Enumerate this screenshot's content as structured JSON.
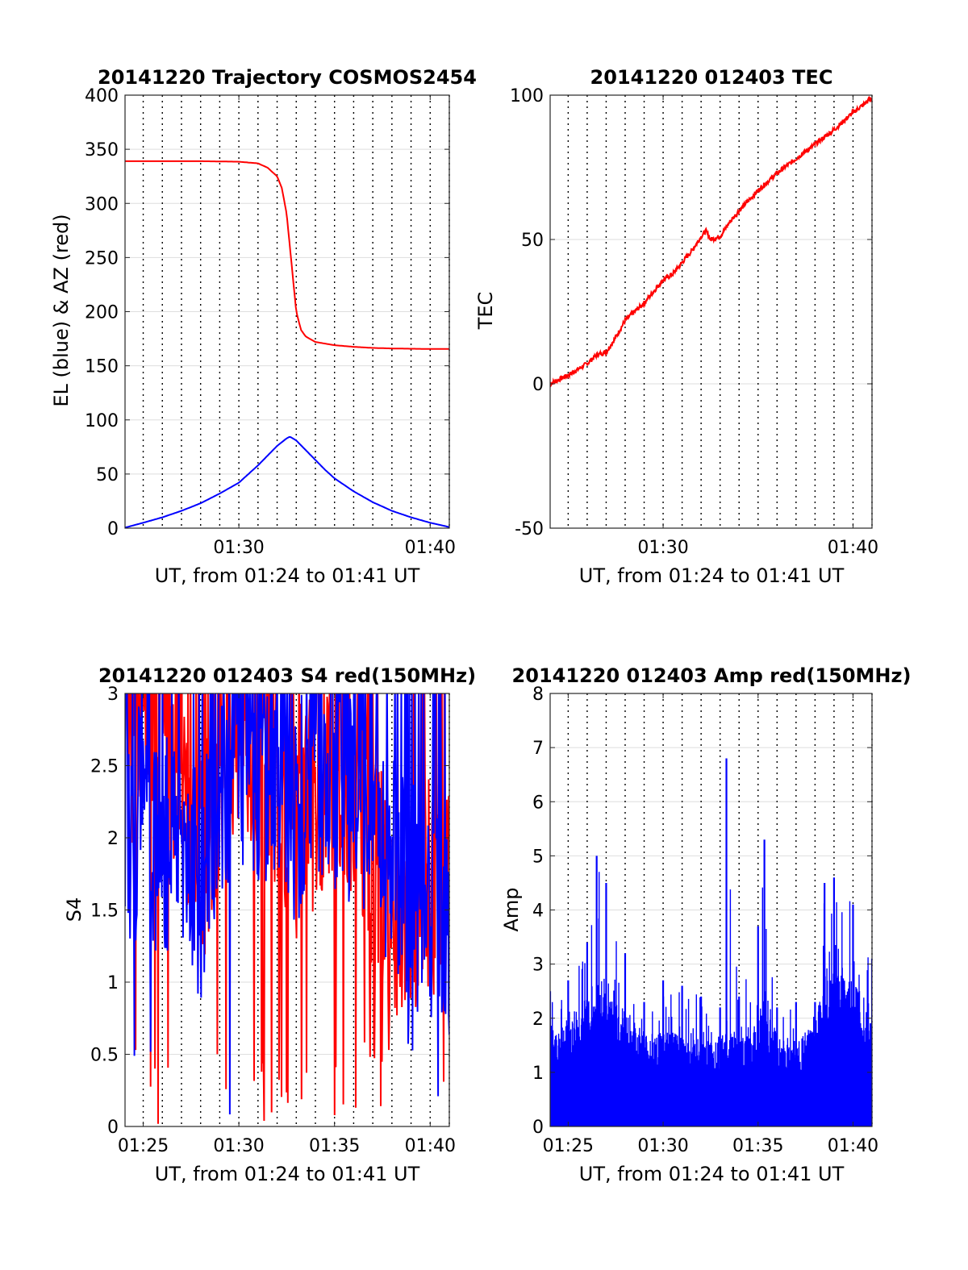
{
  "chart_data": [
    {
      "type": "line",
      "title": "20141220 Trajectory COSMOS2454",
      "xlabel": "UT, from 01:24 to 01:41 UT",
      "ylabel": "EL (blue) & AZ (red)",
      "xlim": [
        "01:24:03",
        "01:41:00"
      ],
      "ylim": [
        0,
        400
      ],
      "yticks": [
        0,
        50,
        100,
        150,
        200,
        250,
        300,
        350,
        400
      ],
      "xticks": [
        "01:30",
        "01:40"
      ],
      "grid": "dotted vertical lines every minute, horizontal gridlines",
      "series": [
        {
          "color": "#ff0000",
          "x": [
            "01:24:03",
            "01:26:00",
            "01:28:00",
            "01:30:00",
            "01:31:00",
            "01:31:30",
            "01:32:00",
            "01:32:15",
            "01:32:30",
            "01:32:45",
            "01:33:00",
            "01:33:15",
            "01:33:30",
            "01:34:00",
            "01:35:00",
            "01:36:00",
            "01:37:00",
            "01:38:00",
            "01:40:00",
            "01:41:00"
          ],
          "values": [
            339,
            339,
            339,
            338.5,
            337,
            333,
            325,
            314,
            290,
            245,
            200,
            183,
            177,
            172,
            169,
            167.5,
            166.5,
            166,
            165.5,
            165.5
          ]
        },
        {
          "color": "#0000ff",
          "x": [
            "01:24:03",
            "01:25:00",
            "01:26:00",
            "01:27:00",
            "01:28:00",
            "01:29:00",
            "01:30:00",
            "01:30:30",
            "01:31:00",
            "01:31:30",
            "01:32:00",
            "01:32:30",
            "01:32:40",
            "01:33:00",
            "01:33:30",
            "01:34:00",
            "01:34:30",
            "01:35:00",
            "01:36:00",
            "01:37:00",
            "01:38:00",
            "01:39:00",
            "01:40:00",
            "01:41:00"
          ],
          "values": [
            0.5,
            5,
            10,
            16,
            23,
            32,
            42,
            50,
            58,
            67,
            76,
            83,
            84.5,
            81,
            72,
            63,
            54,
            46,
            34,
            24,
            16,
            10,
            5,
            1
          ]
        }
      ]
    },
    {
      "type": "line",
      "title": "20141220 012403 TEC",
      "xlabel": "UT, from 01:24 to 01:41 UT",
      "ylabel": "TEC",
      "xlim": [
        "01:24:03",
        "01:41:00"
      ],
      "ylim": [
        -50,
        100
      ],
      "yticks": [
        -50,
        0,
        50,
        100
      ],
      "xticks": [
        "01:30",
        "01:40"
      ],
      "grid": "dotted vertical lines every minute, horizontal gridlines",
      "series": [
        {
          "color": "#ff0000",
          "x": [
            "01:24:03",
            "01:25:00",
            "01:26:00",
            "01:26:30",
            "01:27:00",
            "01:27:30",
            "01:28:00",
            "01:29:00",
            "01:29:30",
            "01:30:00",
            "01:30:30",
            "01:31:00",
            "01:31:30",
            "01:32:00",
            "01:32:15",
            "01:32:30",
            "01:33:00",
            "01:33:30",
            "01:34:00",
            "01:35:00",
            "01:36:00",
            "01:37:00",
            "01:38:00",
            "01:39:00",
            "01:40:00",
            "01:41:00"
          ],
          "values": [
            0,
            3,
            7,
            10,
            11,
            16,
            22,
            28,
            32,
            36,
            38,
            42,
            46,
            51,
            53,
            50,
            51,
            56,
            60,
            67,
            73,
            78,
            83,
            88,
            94,
            99
          ]
        }
      ]
    },
    {
      "type": "line",
      "title": "20141220 012403 S4 red(150MHz)",
      "xlabel": "UT, from 01:24 to 01:41 UT",
      "ylabel": "S4",
      "xlim": [
        "01:24:03",
        "01:41:00"
      ],
      "ylim": [
        0,
        3
      ],
      "yticks": [
        "0",
        "0.5",
        "1",
        "1.5",
        "2",
        "2.5",
        "3"
      ],
      "xticks": [
        "01:25",
        "01:30",
        "01:35",
        "01:40"
      ],
      "grid": "dotted vertical lines every minute, horizontal gridlines",
      "series": [
        {
          "color": "#ff0000",
          "description_free": true,
          "x": [
            "01:24:03",
            "01:25:00",
            "01:26:00",
            "01:27:00",
            "01:28:00",
            "01:29:00",
            "01:30:00",
            "01:31:00",
            "01:32:00",
            "01:33:00",
            "01:34:00",
            "01:35:00",
            "01:36:00",
            "01:37:00",
            "01:38:00",
            "01:39:00",
            "01:40:00",
            "01:41:00"
          ],
          "values": [
            2.6,
            2.9,
            2.6,
            2.4,
            1.8,
            2.5,
            2.7,
            2.6,
            2.4,
            2.1,
            2.3,
            2.6,
            2.4,
            1.8,
            1.5,
            1.6,
            1.7,
            1.6
          ]
        },
        {
          "color": "#0000ff",
          "x": [
            "01:24:03",
            "01:25:00",
            "01:26:00",
            "01:27:00",
            "01:28:00",
            "01:29:00",
            "01:30:00",
            "01:31:00",
            "01:32:00",
            "01:33:00",
            "01:34:00",
            "01:35:00",
            "01:36:00",
            "01:37:00",
            "01:38:00",
            "01:39:00",
            "01:40:00",
            "01:41:00"
          ],
          "values": [
            1.9,
            2.2,
            1.9,
            2.1,
            1.6,
            2.3,
            2.6,
            2.5,
            2.4,
            2.2,
            2.5,
            2.4,
            2.3,
            2.3,
            1.8,
            1.6,
            1.5,
            1.4
          ]
        }
      ]
    },
    {
      "type": "line",
      "title": "20141220 012403 Amp red(150MHz)",
      "xlabel": "UT, from 01:24 to 01:41 UT",
      "ylabel": "Amp",
      "xlim": [
        "01:24:03",
        "01:41:00"
      ],
      "ylim": [
        0,
        8
      ],
      "yticks": [
        0,
        1,
        2,
        3,
        4,
        5,
        6,
        7,
        8
      ],
      "xticks": [
        "01:25",
        "01:30",
        "01:35",
        "01:40"
      ],
      "grid": "dotted vertical lines every minute, horizontal gridlines",
      "series": [
        {
          "color": "#0000ff",
          "x": [
            "01:24:03",
            "01:25:00",
            "01:26:00",
            "01:26:30",
            "01:27:00",
            "01:28:00",
            "01:29:00",
            "01:30:00",
            "01:31:00",
            "01:32:00",
            "01:33:00",
            "01:33:20",
            "01:34:00",
            "01:35:00",
            "01:35:20",
            "01:36:00",
            "01:37:00",
            "01:38:00",
            "01:38:30",
            "01:39:00",
            "01:40:00",
            "01:41:00"
          ],
          "peaks": [
            2.5,
            2.7,
            3.4,
            5.0,
            4.5,
            3.2,
            2.3,
            2.7,
            2.6,
            2.4,
            2.2,
            6.8,
            2.4,
            3.7,
            5.3,
            2.2,
            2.3,
            2.3,
            4.5,
            4.6,
            4.1,
            3.1
          ],
          "baseline": [
            1.8,
            2.0,
            2.5,
            2.8,
            2.8,
            2.2,
            1.7,
            1.8,
            1.7,
            1.6,
            1.6,
            2.0,
            1.6,
            2.1,
            2.6,
            1.7,
            1.6,
            1.9,
            2.8,
            2.9,
            2.7,
            2.4
          ]
        }
      ]
    }
  ]
}
